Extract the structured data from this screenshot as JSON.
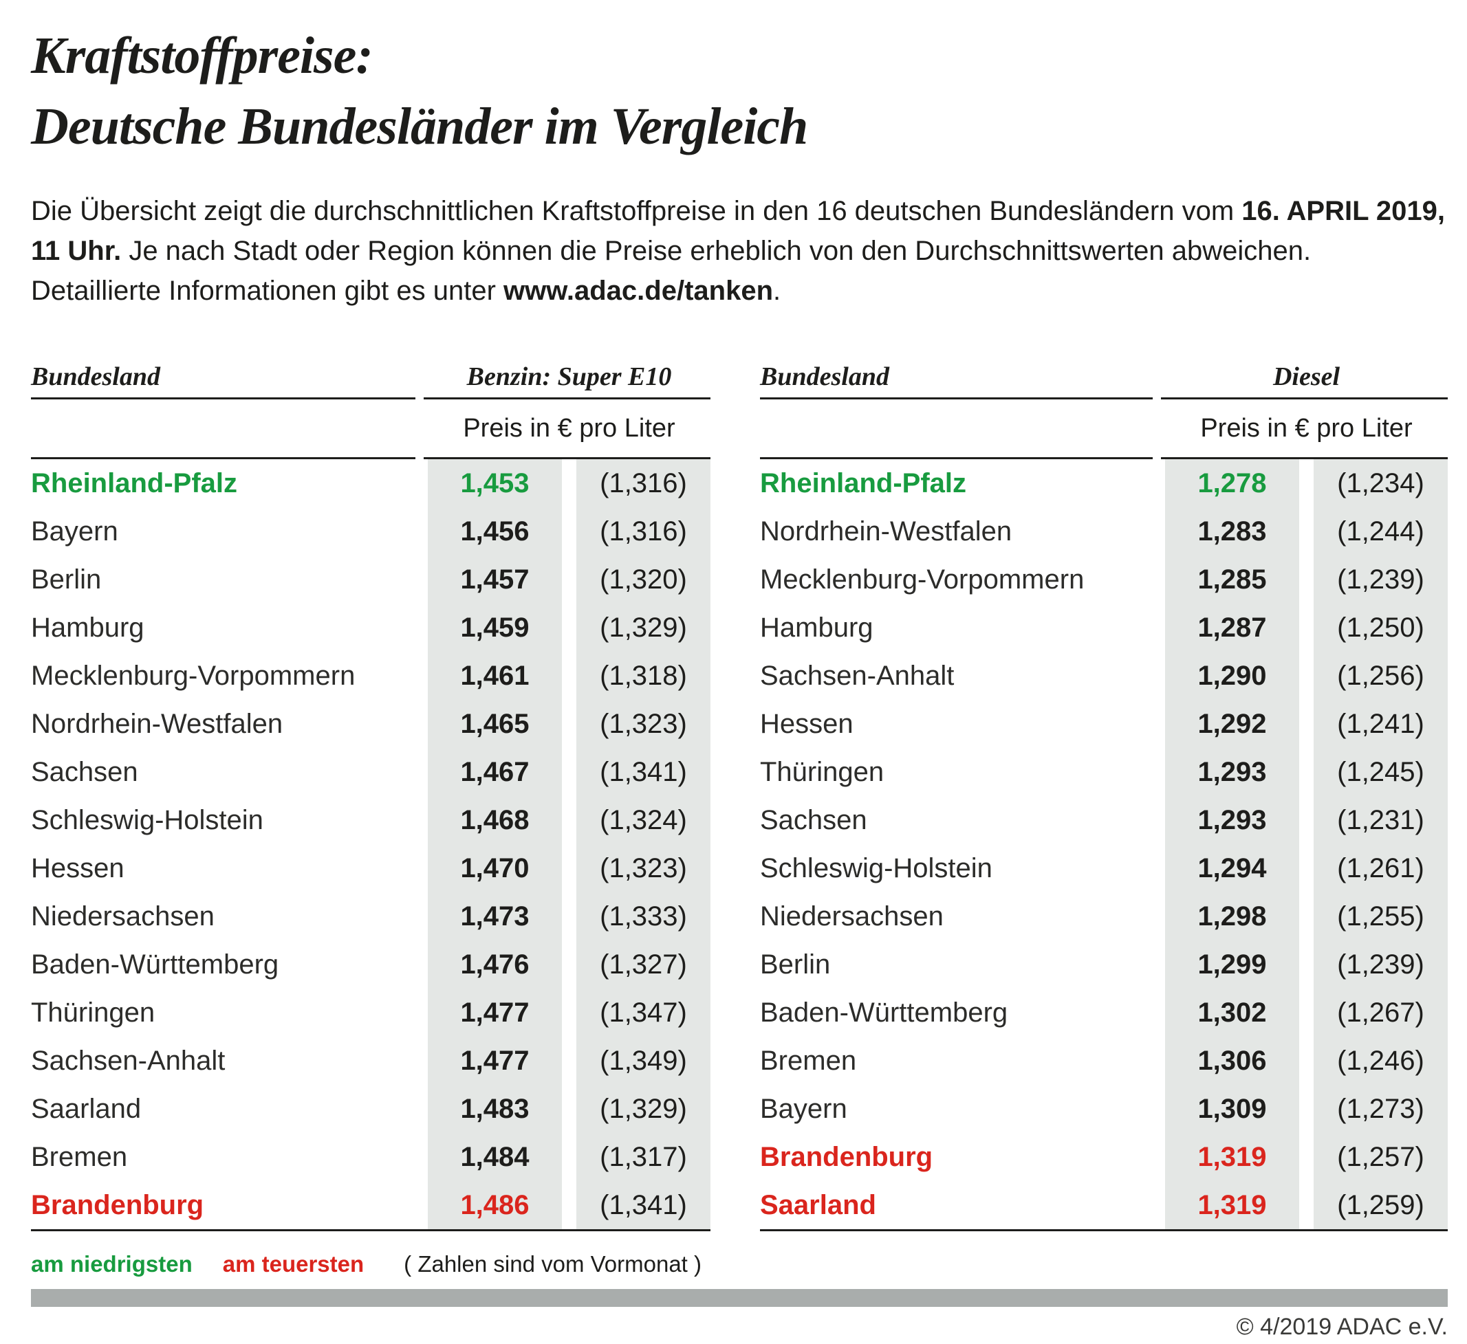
{
  "title": {
    "line1": "Kraftstoffpreise:",
    "line2": "Deutsche Bundesländer im Vergleich"
  },
  "intro": {
    "l1_text": "Die Übersicht zeigt die durchschnittlichen Kraftstoffpreise in den 16 deutschen Bundesländern vom ",
    "l1_bold": "16. APRIL 2019,",
    "l2_bold": "11 Uhr.",
    "l2_text": " Je nach Stadt oder Region können die Preise erheblich von den Durchschnittswerten abweichen.",
    "l3_text": "Detaillierte Informationen gibt es unter ",
    "l3_bold": "www.adac.de/tanken",
    "l3_end": "."
  },
  "tables": [
    {
      "bundesland_header": "Bundesland",
      "fuel_header": "Benzin: Super E10",
      "price_unit": "Preis in € pro Liter",
      "rows": [
        {
          "state": "Rheinland-Pfalz",
          "price": "1,453",
          "prev": "(1,316)",
          "highlight": "lowest"
        },
        {
          "state": "Bayern",
          "price": "1,456",
          "prev": "(1,316)",
          "highlight": "none"
        },
        {
          "state": "Berlin",
          "price": "1,457",
          "prev": "(1,320)",
          "highlight": "none"
        },
        {
          "state": "Hamburg",
          "price": "1,459",
          "prev": "(1,329)",
          "highlight": "none"
        },
        {
          "state": "Mecklenburg-Vorpommern",
          "price": "1,461",
          "prev": "(1,318)",
          "highlight": "none"
        },
        {
          "state": "Nordrhein-Westfalen",
          "price": "1,465",
          "prev": "(1,323)",
          "highlight": "none"
        },
        {
          "state": "Sachsen",
          "price": "1,467",
          "prev": "(1,341)",
          "highlight": "none"
        },
        {
          "state": "Schleswig-Holstein",
          "price": "1,468",
          "prev": "(1,324)",
          "highlight": "none"
        },
        {
          "state": "Hessen",
          "price": "1,470",
          "prev": "(1,323)",
          "highlight": "none"
        },
        {
          "state": "Niedersachsen",
          "price": "1,473",
          "prev": "(1,333)",
          "highlight": "none"
        },
        {
          "state": "Baden-Württemberg",
          "price": "1,476",
          "prev": "(1,327)",
          "highlight": "none"
        },
        {
          "state": "Thüringen",
          "price": "1,477",
          "prev": "(1,347)",
          "highlight": "none"
        },
        {
          "state": "Sachsen-Anhalt",
          "price": "1,477",
          "prev": "(1,349)",
          "highlight": "none"
        },
        {
          "state": "Saarland",
          "price": "1,483",
          "prev": "(1,329)",
          "highlight": "none"
        },
        {
          "state": "Bremen",
          "price": "1,484",
          "prev": "(1,317)",
          "highlight": "none"
        },
        {
          "state": "Brandenburg",
          "price": "1,486",
          "prev": "(1,341)",
          "highlight": "highest"
        }
      ]
    },
    {
      "bundesland_header": "Bundesland",
      "fuel_header": "Diesel",
      "price_unit": "Preis in € pro Liter",
      "rows": [
        {
          "state": "Rheinland-Pfalz",
          "price": "1,278",
          "prev": "(1,234)",
          "highlight": "lowest"
        },
        {
          "state": "Nordrhein-Westfalen",
          "price": "1,283",
          "prev": "(1,244)",
          "highlight": "none"
        },
        {
          "state": "Mecklenburg-Vorpommern",
          "price": "1,285",
          "prev": "(1,239)",
          "highlight": "none"
        },
        {
          "state": "Hamburg",
          "price": "1,287",
          "prev": "(1,250)",
          "highlight": "none"
        },
        {
          "state": "Sachsen-Anhalt",
          "price": "1,290",
          "prev": "(1,256)",
          "highlight": "none"
        },
        {
          "state": "Hessen",
          "price": "1,292",
          "prev": "(1,241)",
          "highlight": "none"
        },
        {
          "state": "Thüringen",
          "price": "1,293",
          "prev": "(1,245)",
          "highlight": "none"
        },
        {
          "state": "Sachsen",
          "price": "1,293",
          "prev": "(1,231)",
          "highlight": "none"
        },
        {
          "state": "Schleswig-Holstein",
          "price": "1,294",
          "prev": "(1,261)",
          "highlight": "none"
        },
        {
          "state": "Niedersachsen",
          "price": "1,298",
          "prev": "(1,255)",
          "highlight": "none"
        },
        {
          "state": "Berlin",
          "price": "1,299",
          "prev": "(1,239)",
          "highlight": "none"
        },
        {
          "state": "Baden-Württemberg",
          "price": "1,302",
          "prev": "(1,267)",
          "highlight": "none"
        },
        {
          "state": "Bremen",
          "price": "1,306",
          "prev": "(1,246)",
          "highlight": "none"
        },
        {
          "state": "Bayern",
          "price": "1,309",
          "prev": "(1,273)",
          "highlight": "none"
        },
        {
          "state": "Brandenburg",
          "price": "1,319",
          "prev": "(1,257)",
          "highlight": "highest"
        },
        {
          "state": "Saarland",
          "price": "1,319",
          "prev": "(1,259)",
          "highlight": "highest"
        }
      ]
    }
  ],
  "legend": {
    "lowest": "am niedrigsten",
    "highest": "am teuersten",
    "note": "( Zahlen sind vom Vormonat )"
  },
  "footer": {
    "copyright": "© 4/2019 ADAC e.V."
  },
  "colors": {
    "lowest_green": "#189b3f",
    "highest_red": "#da251d",
    "price_band_gray": "#e4e7e5",
    "divider_bar_gray": "#a9adac",
    "text_black": "#1d1d1b"
  },
  "chart_data": [
    {
      "type": "table",
      "title": "Benzin: Super E10",
      "unit": "Preis in € pro Liter",
      "columns": [
        "Bundesland",
        "Preis",
        "Vormonat"
      ],
      "rows": [
        [
          "Rheinland-Pfalz",
          1.453,
          1.316
        ],
        [
          "Bayern",
          1.456,
          1.316
        ],
        [
          "Berlin",
          1.457,
          1.32
        ],
        [
          "Hamburg",
          1.459,
          1.329
        ],
        [
          "Mecklenburg-Vorpommern",
          1.461,
          1.318
        ],
        [
          "Nordrhein-Westfalen",
          1.465,
          1.323
        ],
        [
          "Sachsen",
          1.467,
          1.341
        ],
        [
          "Schleswig-Holstein",
          1.468,
          1.324
        ],
        [
          "Hessen",
          1.47,
          1.323
        ],
        [
          "Niedersachsen",
          1.473,
          1.333
        ],
        [
          "Baden-Württemberg",
          1.476,
          1.327
        ],
        [
          "Thüringen",
          1.477,
          1.347
        ],
        [
          "Sachsen-Anhalt",
          1.477,
          1.349
        ],
        [
          "Saarland",
          1.483,
          1.329
        ],
        [
          "Bremen",
          1.484,
          1.317
        ],
        [
          "Brandenburg",
          1.486,
          1.341
        ]
      ],
      "lowest": "Rheinland-Pfalz",
      "highest": "Brandenburg"
    },
    {
      "type": "table",
      "title": "Diesel",
      "unit": "Preis in € pro Liter",
      "columns": [
        "Bundesland",
        "Preis",
        "Vormonat"
      ],
      "rows": [
        [
          "Rheinland-Pfalz",
          1.278,
          1.234
        ],
        [
          "Nordrhein-Westfalen",
          1.283,
          1.244
        ],
        [
          "Mecklenburg-Vorpommern",
          1.285,
          1.239
        ],
        [
          "Hamburg",
          1.287,
          1.25
        ],
        [
          "Sachsen-Anhalt",
          1.29,
          1.256
        ],
        [
          "Hessen",
          1.292,
          1.241
        ],
        [
          "Thüringen",
          1.293,
          1.245
        ],
        [
          "Sachsen",
          1.293,
          1.231
        ],
        [
          "Schleswig-Holstein",
          1.294,
          1.261
        ],
        [
          "Niedersachsen",
          1.298,
          1.255
        ],
        [
          "Berlin",
          1.299,
          1.239
        ],
        [
          "Baden-Württemberg",
          1.302,
          1.267
        ],
        [
          "Bremen",
          1.306,
          1.246
        ],
        [
          "Bayern",
          1.309,
          1.273
        ],
        [
          "Brandenburg",
          1.319,
          1.257
        ],
        [
          "Saarland",
          1.319,
          1.259
        ]
      ],
      "lowest": "Rheinland-Pfalz",
      "highest": [
        "Brandenburg",
        "Saarland"
      ]
    }
  ]
}
